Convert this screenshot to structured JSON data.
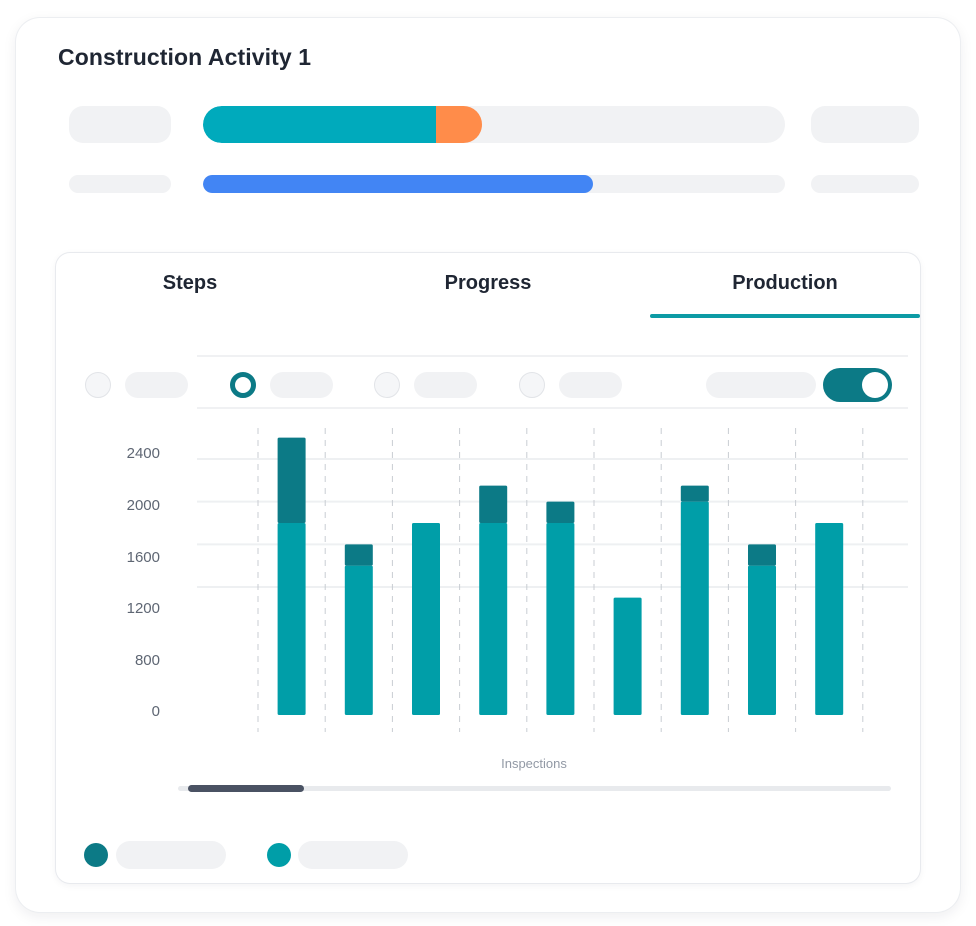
{
  "header": {
    "title": "Construction Activity 1"
  },
  "overview": {
    "primary_bar": {
      "completed_fraction": 0.4,
      "in_progress_fraction": 0.08,
      "colors": {
        "completed": "#00aabc",
        "in_progress": "#ff8c4a",
        "track": "#f1f2f4"
      }
    },
    "secondary_bar": {
      "fraction": 0.67,
      "color": "#4285f4"
    }
  },
  "tabs": [
    {
      "label": "Steps",
      "active": false
    },
    {
      "label": "Progress",
      "active": false
    },
    {
      "label": "Production",
      "active": true
    }
  ],
  "filters": {
    "selected_index": 1,
    "toggle_on": true
  },
  "chart_data": {
    "type": "bar",
    "stacked": true,
    "xlabel": "Inspections",
    "ylabel": "",
    "ylim": [
      0,
      2600
    ],
    "yticks": [
      "2400",
      "2000",
      "1600",
      "1200",
      "800",
      "0"
    ],
    "grid": true,
    "series": [
      {
        "name": "",
        "color": "#009ea8",
        "values": [
          1800,
          1400,
          1800,
          1800,
          1800,
          1100,
          2000,
          1400,
          1800
        ]
      },
      {
        "name": "",
        "color": "#0c7a86",
        "values": [
          800,
          200,
          0,
          350,
          200,
          0,
          150,
          200,
          0
        ]
      }
    ]
  },
  "legend": [
    {
      "color": "#0c7a86"
    },
    {
      "color": "#009ea8"
    }
  ],
  "colors": {
    "accent": "#0d9ba5",
    "dark_teal": "#0c7a86",
    "teal": "#009ea8"
  }
}
